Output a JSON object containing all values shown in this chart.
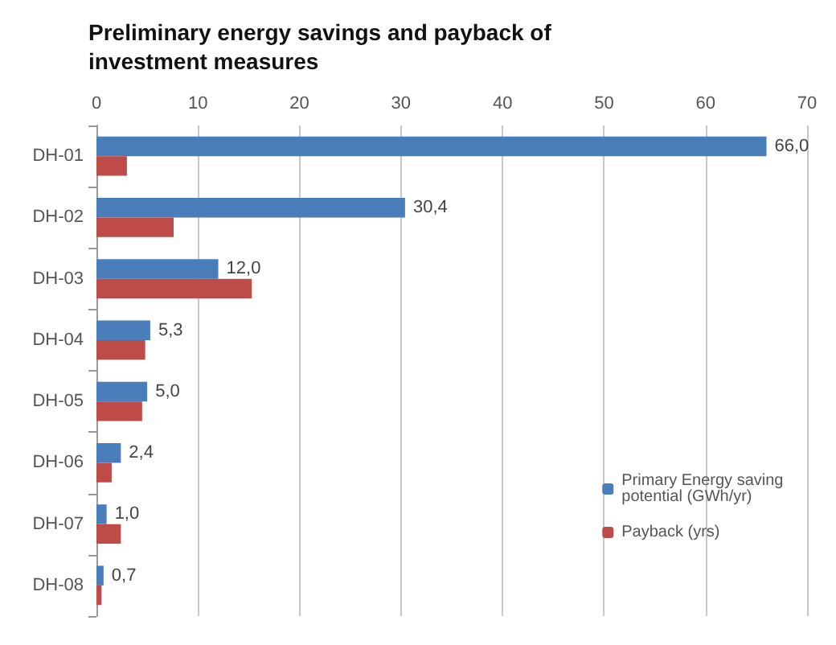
{
  "chart_data": {
    "type": "bar",
    "orientation": "horizontal",
    "title": "Preliminary energy savings and payback of investment measures",
    "categories": [
      "DH-01",
      "DH-02",
      "DH-03",
      "DH-04",
      "DH-05",
      "DH-06",
      "DH-07",
      "DH-08"
    ],
    "series": [
      {
        "name": "Primary Energy saving potential (GWh/yr)",
        "color": "#4a7ebb",
        "values": [
          66.0,
          30.4,
          12.0,
          5.3,
          5.0,
          2.4,
          1.0,
          0.7
        ],
        "value_labels": [
          "66,0",
          "30,4",
          "12,0",
          "5,3",
          "5,0",
          "2,4",
          "1,0",
          "0,7"
        ]
      },
      {
        "name": "Payback (yrs)",
        "color": "#be4b48",
        "values": [
          3,
          7.6,
          15.3,
          4.8,
          4.5,
          1.5,
          2.4,
          0.5
        ]
      }
    ],
    "xlim": [
      0,
      70
    ],
    "xticks": [
      0,
      10,
      20,
      30,
      40,
      50,
      60,
      70
    ],
    "grid": "x",
    "legend": "bottom right"
  }
}
